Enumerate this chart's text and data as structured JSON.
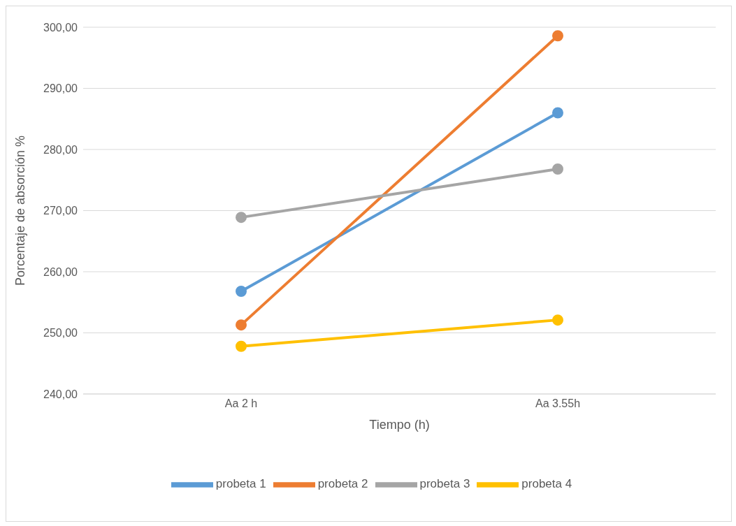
{
  "chart_data": {
    "type": "line",
    "xlabel": "Tiempo (h)",
    "ylabel": "Porcentaje de absorción %",
    "categories": [
      "Aa 2 h",
      "Aa 3.55h"
    ],
    "series": [
      {
        "name": "probeta 1",
        "color": "#5b9bd5",
        "values": [
          256.8,
          286.0
        ]
      },
      {
        "name": "probeta 2",
        "color": "#ed7d31",
        "values": [
          251.3,
          298.6
        ]
      },
      {
        "name": "probeta 3",
        "color": "#a5a5a5",
        "values": [
          268.9,
          276.8
        ]
      },
      {
        "name": "probeta 4",
        "color": "#ffc000",
        "values": [
          247.8,
          252.1
        ]
      }
    ],
    "ylim": [
      240,
      300
    ],
    "yticks": [
      {
        "value": 240,
        "label": "240,00"
      },
      {
        "value": 250,
        "label": "250,00"
      },
      {
        "value": 260,
        "label": "260,00"
      },
      {
        "value": 270,
        "label": "270,00"
      },
      {
        "value": 280,
        "label": "280,00"
      },
      {
        "value": 290,
        "label": "290,00"
      },
      {
        "value": 300,
        "label": "300,00"
      }
    ],
    "grid": "y",
    "legend": "bottom",
    "marker": "circle",
    "line_style": "solid"
  }
}
